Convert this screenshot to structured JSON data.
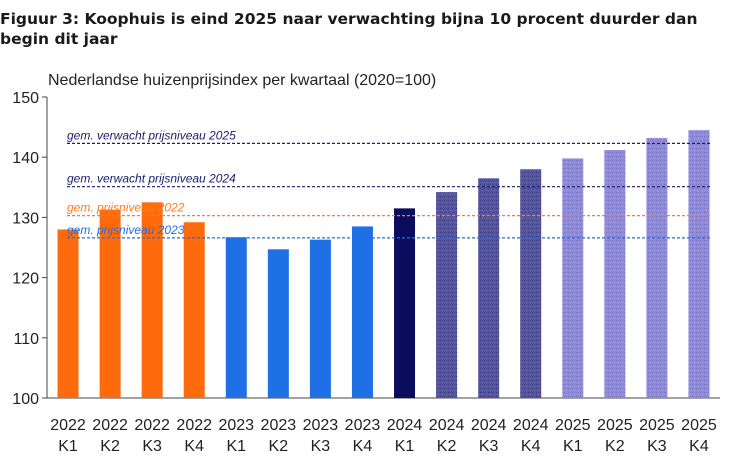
{
  "figure": {
    "title": "Figuur 3: Koophuis is eind 2025 naar verwachting bijna 10 procent duurder dan begin dit jaar"
  },
  "chart_data": {
    "type": "bar",
    "title": "Nederlandse huizenprijsindex per kwartaal (2020=100)",
    "xlabel": "",
    "ylabel": "",
    "ylim": [
      100,
      150
    ],
    "yticks": [
      100,
      110,
      120,
      130,
      140,
      150
    ],
    "grid": false,
    "categories": [
      {
        "year": "2022",
        "quarter": "K1"
      },
      {
        "year": "2022",
        "quarter": "K2"
      },
      {
        "year": "2022",
        "quarter": "K3"
      },
      {
        "year": "2022",
        "quarter": "K4"
      },
      {
        "year": "2023",
        "quarter": "K1"
      },
      {
        "year": "2023",
        "quarter": "K2"
      },
      {
        "year": "2023",
        "quarter": "K3"
      },
      {
        "year": "2023",
        "quarter": "K4"
      },
      {
        "year": "2024",
        "quarter": "K1"
      },
      {
        "year": "2024",
        "quarter": "K2"
      },
      {
        "year": "2024",
        "quarter": "K3"
      },
      {
        "year": "2024",
        "quarter": "K4"
      },
      {
        "year": "2025",
        "quarter": "K1"
      },
      {
        "year": "2025",
        "quarter": "K2"
      },
      {
        "year": "2025",
        "quarter": "K3"
      },
      {
        "year": "2025",
        "quarter": "K4"
      }
    ],
    "values": [
      128.0,
      131.3,
      132.5,
      129.2,
      126.7,
      124.7,
      126.3,
      128.5,
      131.5,
      134.2,
      136.5,
      138.0,
      139.8,
      141.2,
      143.2,
      144.5
    ],
    "bar_styles": [
      "orange",
      "orange",
      "orange",
      "orange",
      "blue",
      "blue",
      "blue",
      "blue",
      "navy",
      "hatched",
      "hatched",
      "hatched",
      "light-hatched",
      "light-hatched",
      "light-hatched",
      "light-hatched"
    ],
    "colors": {
      "orange": "#ff6a0d",
      "blue": "#1f6fe5",
      "navy": "#0c0c5e",
      "hatched": "#4a4a98",
      "light-hatched": "#8d89d8"
    },
    "reference_lines": [
      {
        "label": "gem. verwacht prijsniveau 2025",
        "value": 142.3,
        "color": "#1c1c6e",
        "x_end": 16
      },
      {
        "label": "gem. verwacht prijsniveau 2024",
        "value": 135.1,
        "color": "#1c1c6e",
        "x_end": 16
      },
      {
        "label": "gem. prijsniveau 2022",
        "value": 130.3,
        "color": "#ff7a20",
        "x_end": 16
      },
      {
        "label": "gem. prijsniveau 2023",
        "value": 126.6,
        "color": "#1f6fe5",
        "x_end": 16
      }
    ]
  }
}
